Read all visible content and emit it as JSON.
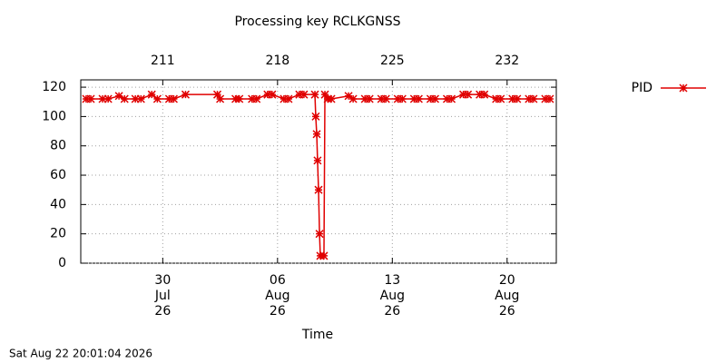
{
  "chart_data": {
    "type": "line",
    "title": "Processing key RCLKGNSS",
    "x_label": "Time",
    "timestamp": "Sat Aug 22 20:01:04 2026",
    "xlim": [
      206,
      235
    ],
    "ylim": [
      0,
      125
    ],
    "yticks": [
      0,
      20,
      40,
      60,
      80,
      100,
      120
    ],
    "xticks": [
      {
        "value": 211,
        "label": "30 Jul 26"
      },
      {
        "value": 218,
        "label": "06 Aug 26"
      },
      {
        "value": 225,
        "label": "13 Aug 26"
      },
      {
        "value": 232,
        "label": "20 Aug 26"
      }
    ],
    "x2ticks": [
      211,
      218,
      225,
      232
    ],
    "grid": true,
    "legend": "outside-top-right",
    "x": [
      206.33,
      206.61,
      207.33,
      207.67,
      208.33,
      208.67,
      209.33,
      209.67,
      210.33,
      210.67,
      211.39,
      211.67,
      212.39,
      214.33,
      214.5,
      215.44,
      215.67,
      216.44,
      216.72,
      217.39,
      217.67,
      218.39,
      218.67,
      219.33,
      219.61,
      220.28,
      220.33,
      220.39,
      220.44,
      220.5,
      220.56,
      220.61,
      220.83,
      220.89,
      221.06,
      221.28,
      222.33,
      222.61,
      223.33,
      223.61,
      224.33,
      224.61,
      225.33,
      225.61,
      226.33,
      226.61,
      227.33,
      227.61,
      228.33,
      228.61,
      229.33,
      229.61,
      230.33,
      230.61,
      231.33,
      231.61,
      232.33,
      232.61,
      233.33,
      233.61,
      234.33,
      234.61
    ],
    "series": [
      {
        "name": "PID",
        "color": "#e00000",
        "values": [
          112,
          112,
          112,
          112,
          114,
          112,
          112,
          112,
          115,
          112,
          112,
          112,
          115,
          115,
          112,
          112,
          112,
          112,
          112,
          115,
          115,
          112,
          112,
          115,
          115,
          115,
          100,
          88,
          70,
          50,
          20,
          5,
          5,
          115,
          112,
          112,
          114,
          112,
          112,
          112,
          112,
          112,
          112,
          112,
          112,
          112,
          112,
          112,
          112,
          112,
          115,
          115,
          115,
          115,
          112,
          112,
          112,
          112,
          112,
          112,
          112,
          112
        ]
      }
    ]
  }
}
